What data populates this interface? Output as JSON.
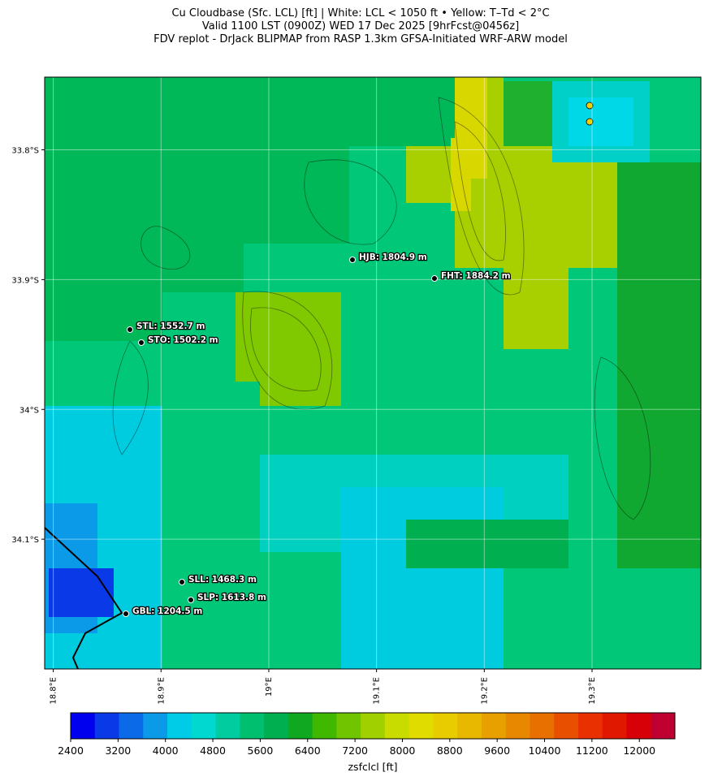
{
  "chart_data": {
    "type": "map",
    "title": "Cu Cloudbase (Sfc. LCL) [ft]  |  White: LCL < 1050 ft • Yellow: T–Td < 2°C",
    "subtitle": "Valid 1100 LST (0900Z) WED 17 Dec 2025 [9hrFcst@0456z]",
    "subtitle2": "FDV replot - DrJack BLIPMAP from RASP 1.3km GFSA-Initiated WRF-ARW model",
    "xlim": [
      18.792,
      19.401
    ],
    "ylim": [
      -34.2,
      -33.744
    ],
    "xticks": [
      {
        "value": 18.8,
        "label": "18.8°E"
      },
      {
        "value": 18.9,
        "label": "18.9°E"
      },
      {
        "value": 19.0,
        "label": "19°E"
      },
      {
        "value": 19.1,
        "label": "19.1°E"
      },
      {
        "value": 19.2,
        "label": "19.2°E"
      },
      {
        "value": 19.3,
        "label": "19.3°E"
      }
    ],
    "yticks": [
      {
        "value": -33.8,
        "label": "33.8°S"
      },
      {
        "value": -33.9,
        "label": "33.9°S"
      },
      {
        "value": -34.0,
        "label": "34°S"
      },
      {
        "value": -34.1,
        "label": "34.1°S"
      }
    ],
    "grid": true,
    "stations": [
      "HJB: 1804.9 m",
      "FHT: 1884.2 m",
      "STL: 1552.7 m",
      "STO: 1502.2 m",
      "SLL: 1468.3 m",
      "SLP: 1613.8 m",
      "GBL: 1204.5 m"
    ],
    "colorbar": {
      "label": "zsfclcl [ft]",
      "lim": [
        2400,
        12600
      ],
      "ticks": [
        2400,
        3200,
        4000,
        4800,
        5600,
        6400,
        7200,
        8000,
        8800,
        9600,
        10400,
        11200,
        12000
      ],
      "colors": [
        "#0000ee",
        "#0a3ae8",
        "#0a6ae8",
        "#0a9ae8",
        "#00cce8",
        "#00d8d0",
        "#00cca0",
        "#00c070",
        "#00b050",
        "#10a820",
        "#40b800",
        "#70c400",
        "#a0d000",
        "#c8dc00",
        "#e0dc00",
        "#e8cc00",
        "#e8b800",
        "#e8a000",
        "#e88800",
        "#e87000",
        "#e85000",
        "#e83000",
        "#e01800",
        "#d80008",
        "#c00030"
      ]
    }
  }
}
